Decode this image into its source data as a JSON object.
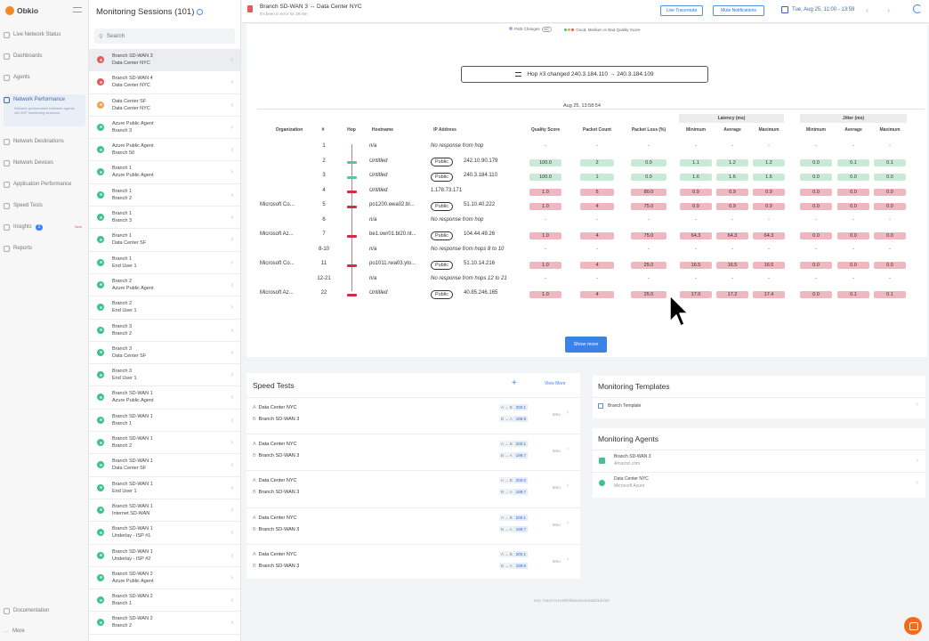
{
  "app": {
    "name": "Obkio"
  },
  "nav": {
    "items": [
      {
        "label": "Live Network Status"
      },
      {
        "label": "Dashboards"
      },
      {
        "label": "Agents"
      },
      {
        "label": "Network Performance",
        "desc": "Network performance between agents via UDP monitoring sessions"
      },
      {
        "label": "Network Destinations"
      },
      {
        "label": "Network Devices"
      },
      {
        "label": "Application Performance"
      },
      {
        "label": "Speed Tests"
      },
      {
        "label": "Insights",
        "badge": "2",
        "tag": "New"
      },
      {
        "label": "Reports"
      }
    ],
    "documentation": "Documentation",
    "more": "More"
  },
  "sessions": {
    "title": "Monitoring Sessions (101)",
    "search_placeholder": "Search",
    "items": [
      {
        "a": "Branch SD-WAN 3",
        "b": "Data Center NYC",
        "status": "#e35a5a",
        "selected": true
      },
      {
        "a": "Branch SD-WAN 4",
        "b": "Data Center NYC",
        "status": "#e35a5a"
      },
      {
        "a": "Data Center SF",
        "b": "Data Center NYC",
        "status": "#f2a154"
      },
      {
        "a": "Azure Public Agent",
        "b": "Branch 3",
        "status": "#3ec28a"
      },
      {
        "a": "Azure Public Agent",
        "b": "Branch 50",
        "status": "#3ec28a"
      },
      {
        "a": "Branch 1",
        "b": "Azure Public Agent",
        "status": "#3ec28a"
      },
      {
        "a": "Branch 1",
        "b": "Branch 2",
        "status": "#3ec28a"
      },
      {
        "a": "Branch 1",
        "b": "Branch 3",
        "status": "#3ec28a"
      },
      {
        "a": "Branch 1",
        "b": "Data Center SF",
        "status": "#3ec28a"
      },
      {
        "a": "Branch 1",
        "b": "End User 1",
        "status": "#3ec28a"
      },
      {
        "a": "Branch 2",
        "b": "Azure Public Agent",
        "status": "#3ec28a"
      },
      {
        "a": "Branch 2",
        "b": "End User 1",
        "status": "#3ec28a"
      },
      {
        "a": "Branch 3",
        "b": "Branch 2",
        "status": "#3ec28a"
      },
      {
        "a": "Branch 3",
        "b": "Data Center SF",
        "status": "#3ec28a"
      },
      {
        "a": "Branch 3",
        "b": "End User 1",
        "status": "#3ec28a"
      },
      {
        "a": "Branch SD-WAN 1",
        "b": "Azure Public Agent",
        "status": "#3ec28a"
      },
      {
        "a": "Branch SD-WAN 1",
        "b": "Branch 1",
        "status": "#3ec28a"
      },
      {
        "a": "Branch SD-WAN 1",
        "b": "Branch 2",
        "status": "#3ec28a"
      },
      {
        "a": "Branch SD-WAN 1",
        "b": "Data Center SF",
        "status": "#3ec28a"
      },
      {
        "a": "Branch SD-WAN 1",
        "b": "End User 1",
        "status": "#3ec28a"
      },
      {
        "a": "Branch SD-WAN 1",
        "b": "Internet SD-WAN",
        "status": "#3ec28a"
      },
      {
        "a": "Branch SD-WAN 1",
        "b": "Underlay - ISP #1",
        "status": "#3ec28a"
      },
      {
        "a": "Branch SD-WAN 1",
        "b": "Underlay - ISP #2",
        "status": "#3ec28a"
      },
      {
        "a": "Branch SD-WAN 2",
        "b": "Azure Public Agent",
        "status": "#3ec28a"
      },
      {
        "a": "Branch SD-WAN 2",
        "b": "Branch 1",
        "status": "#3ec28a"
      },
      {
        "a": "Branch SD-WAN 2",
        "b": "Branch 2",
        "status": "#3ec28a"
      }
    ]
  },
  "header": {
    "title": "Branch SD-WAN 3 ↔ Data Center NYC",
    "subtitle": "It's been in error for 28 min",
    "live_traceroute": "Live Traceroute",
    "mute": "Mute Notifications",
    "date_range": "Tue, Aug 25, 11:00 - 13:59"
  },
  "traceroute": {
    "legend_path": "Path Changes",
    "legend_mc": "MC",
    "legend_quality": "Good, Medium or Bad Quality Score",
    "hop_change": "Hop #3 changed 240.3.184.110 → 240.3.184.109",
    "timestamp": "Aug 25, 13:58:54",
    "group_latency": "Latency (ms)",
    "group_jitter": "Jitter (ms)",
    "headers": {
      "org": "Organization",
      "num": "#",
      "hop": "Hop",
      "host": "Hostname",
      "ip": "IP Address",
      "qs": "Quality Score",
      "pc": "Packet Count",
      "pl": "Packet Loss (%)",
      "lmin": "Minimum",
      "lavg": "Average",
      "lmax": "Maximum",
      "jmin": "Minimum",
      "javg": "Average",
      "jmax": "Maximum"
    },
    "public_label": "Public",
    "show_more": "Show more",
    "rows": [
      {
        "num": "1",
        "org": "",
        "host": "n/a",
        "ip": "No response from hop",
        "pub": false,
        "hop": "none",
        "vals": null
      },
      {
        "num": "2",
        "org": "",
        "host": "Untitled",
        "ip": "242.10.90.179",
        "pub": true,
        "hop": "g",
        "vals": [
          [
            "100.0",
            "g"
          ],
          [
            "2",
            "g"
          ],
          [
            "0.0",
            "g"
          ],
          [
            "1.1",
            "g"
          ],
          [
            "1.2",
            "g"
          ],
          [
            "1.2",
            "g"
          ],
          [
            "0.0",
            "g"
          ],
          [
            "0.1",
            "g"
          ],
          [
            "0.1",
            "g"
          ]
        ]
      },
      {
        "num": "3",
        "org": "",
        "host": "Untitled",
        "ip": "240.3.184.110",
        "pub": true,
        "hop": "g",
        "vals": [
          [
            "100.0",
            "g"
          ],
          [
            "1",
            "g"
          ],
          [
            "0.0",
            "g"
          ],
          [
            "1.6",
            "g"
          ],
          [
            "1.6",
            "g"
          ],
          [
            "1.6",
            "g"
          ],
          [
            "0.0",
            "g"
          ],
          [
            "0.0",
            "g"
          ],
          [
            "0.0",
            "g"
          ]
        ]
      },
      {
        "num": "4",
        "org": "",
        "host": "Untitled",
        "ip": "1.178.73.171",
        "pub": false,
        "hop": "r",
        "vals": [
          [
            "1.0",
            "r"
          ],
          [
            "5",
            "r"
          ],
          [
            "80.0",
            "r"
          ],
          [
            "0.9",
            "r"
          ],
          [
            "0.9",
            "r"
          ],
          [
            "0.9",
            "r"
          ],
          [
            "0.0",
            "r"
          ],
          [
            "0.0",
            "r"
          ],
          [
            "0.0",
            "r"
          ]
        ]
      },
      {
        "num": "5",
        "org": "Microsoft Co...",
        "host": "po1200.ewa02.bl...",
        "ip": "51.10.40.222",
        "pub": true,
        "hop": "r",
        "vals": [
          [
            "1.0",
            "r"
          ],
          [
            "4",
            "r"
          ],
          [
            "75.0",
            "r"
          ],
          [
            "0.9",
            "r"
          ],
          [
            "0.9",
            "r"
          ],
          [
            "0.9",
            "r"
          ],
          [
            "0.0",
            "r"
          ],
          [
            "0.0",
            "r"
          ],
          [
            "0.0",
            "r"
          ]
        ]
      },
      {
        "num": "6",
        "org": "",
        "host": "n/a",
        "ip": "No response from hop",
        "pub": false,
        "hop": "none",
        "vals": null
      },
      {
        "num": "7",
        "org": "Microsoft Az...",
        "host": "be1.owr01.bl20.nt...",
        "ip": "104.44.49.26",
        "pub": true,
        "hop": "r",
        "vals": [
          [
            "1.0",
            "r"
          ],
          [
            "4",
            "r"
          ],
          [
            "75.0",
            "r"
          ],
          [
            "64.3",
            "r"
          ],
          [
            "64.3",
            "r"
          ],
          [
            "64.3",
            "r"
          ],
          [
            "0.0",
            "r"
          ],
          [
            "0.0",
            "r"
          ],
          [
            "0.0",
            "r"
          ]
        ]
      },
      {
        "num": "8-10",
        "org": "",
        "host": "n/a",
        "ip": "No response from hops 8 to 10",
        "pub": false,
        "hop": "none",
        "vals": null
      },
      {
        "num": "11",
        "org": "Microsoft Co...",
        "host": "po1011.rwa03.yto...",
        "ip": "51.10.14.216",
        "pub": true,
        "hop": "r",
        "vals": [
          [
            "1.0",
            "r"
          ],
          [
            "4",
            "r"
          ],
          [
            "25.0",
            "r"
          ],
          [
            "16.5",
            "r"
          ],
          [
            "16.5",
            "r"
          ],
          [
            "16.5",
            "r"
          ],
          [
            "0.0",
            "r"
          ],
          [
            "0.0",
            "r"
          ],
          [
            "0.0",
            "r"
          ]
        ]
      },
      {
        "num": "12-21",
        "org": "",
        "host": "n/a",
        "ip": "No response from hops 12 to 21",
        "pub": false,
        "hop": "none",
        "vals": null
      },
      {
        "num": "22",
        "org": "Microsoft Az...",
        "host": "Untitled",
        "ip": "40.85.246.165",
        "pub": true,
        "hop": "r",
        "vals": [
          [
            "1.0",
            "r"
          ],
          [
            "4",
            "r"
          ],
          [
            "25.0",
            "r"
          ],
          [
            "17.0",
            "r"
          ],
          [
            "17.2",
            "r"
          ],
          [
            "17.4",
            "r"
          ],
          [
            "0.0",
            "r"
          ],
          [
            "0.1",
            "r"
          ],
          [
            "0.1",
            "r"
          ]
        ]
      }
    ]
  },
  "speed_tests": {
    "title": "Speed Tests",
    "add": "+",
    "view_more": "View More",
    "rows": [
      {
        "a": "Data Center NYC",
        "b": "Branch SD-WAN 3",
        "ab": "200.1",
        "ba": "199.8",
        "time": "5mo"
      },
      {
        "a": "Data Center NYC",
        "b": "Branch SD-WAN 3",
        "ab": "200.1",
        "ba": "199.7",
        "time": "5mo"
      },
      {
        "a": "Data Center NYC",
        "b": "Branch SD-WAN 3",
        "ab": "200.0",
        "ba": "199.7",
        "time": "5mo"
      },
      {
        "a": "Data Center NYC",
        "b": "Branch SD-WAN 3",
        "ab": "200.1",
        "ba": "199.7",
        "time": "5mo"
      },
      {
        "a": "Data Center NYC",
        "b": "Branch SD-WAN 3",
        "ab": "200.1",
        "ba": "199.6",
        "time": "5mo"
      }
    ],
    "dir_ab": "A → B",
    "dir_ba": "B → A"
  },
  "templates": {
    "title": "Monitoring Templates",
    "item": "Branch Template"
  },
  "agents": {
    "title": "Monitoring Agents",
    "items": [
      {
        "name": "Branch SD-WAN 3",
        "sub": "Amazon.com",
        "color": "#4bbf8f"
      },
      {
        "name": "Data Center NYC",
        "sub": "Microsoft Azure",
        "color": "#3ec28a"
      }
    ]
  },
  "footer": {
    "key": "Key: fc5a72c4100f4fd6ae314e63dd1dcf29"
  }
}
